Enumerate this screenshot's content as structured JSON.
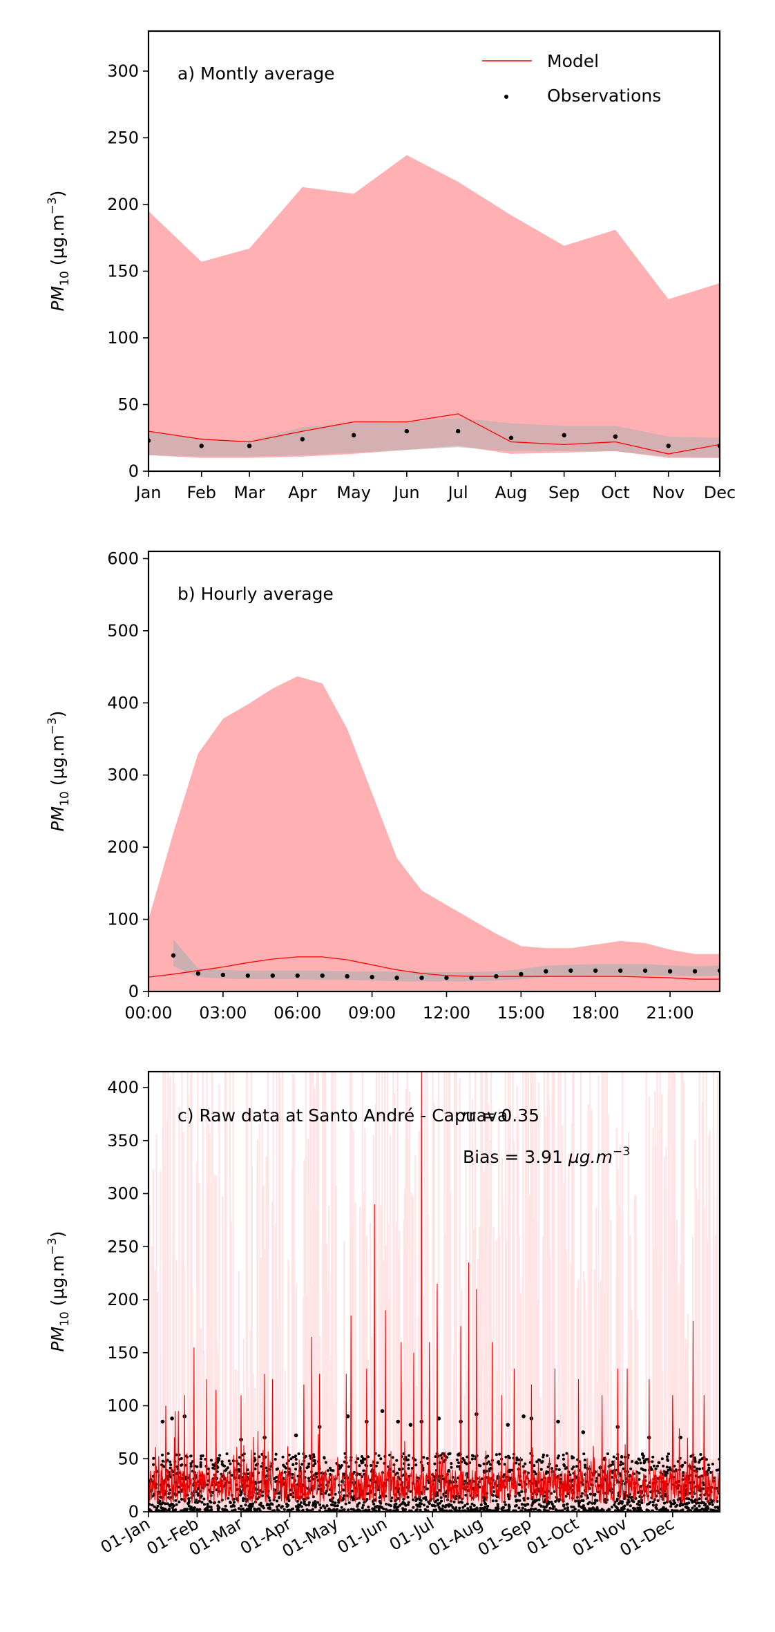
{
  "chart_data": [
    {
      "type": "area",
      "title": "a) Montly average",
      "xlabel": "",
      "ylabel": "PM10 (µg.m-3)",
      "ylabel_base": "PM",
      "ylabel_sub": "10",
      "ylabel_units": " (µg.m",
      "ylabel_exp": "−3",
      "ylabel_close": ")",
      "ylim": [
        0,
        330
      ],
      "y_ticks": [
        0,
        50,
        100,
        150,
        200,
        250,
        300
      ],
      "categories": [
        "Jan",
        "Feb",
        "Mar",
        "Apr",
        "May",
        "Jun",
        "Jul",
        "Aug",
        "Sep",
        "Oct",
        "Nov",
        "Dec"
      ],
      "x_positions": [
        1,
        32,
        60,
        91,
        121,
        152,
        182,
        213,
        244,
        274,
        305,
        335
      ],
      "x_range": [
        1,
        335
      ],
      "legend": [
        "Model",
        "Observations"
      ],
      "legend_position": "top-right",
      "series": [
        {
          "name": "Model",
          "values": [
            30,
            24,
            22,
            30,
            37,
            37,
            43,
            22,
            20,
            22,
            13,
            20
          ]
        },
        {
          "name": "Observations",
          "values": [
            23,
            19,
            19,
            24,
            27,
            30,
            30,
            25,
            27,
            26,
            19,
            19
          ]
        }
      ],
      "model_band": {
        "lower": [
          12,
          10,
          10,
          11,
          13,
          16,
          19,
          13,
          14,
          15,
          10,
          10
        ],
        "upper": [
          195,
          157,
          167,
          213,
          208,
          237,
          217,
          192,
          169,
          181,
          129,
          141
        ]
      },
      "obs_band": {
        "lower": [
          12,
          11,
          11,
          12,
          14,
          16,
          18,
          15,
          15,
          15,
          11,
          10
        ],
        "upper": [
          30,
          24,
          23,
          33,
          36,
          37,
          40,
          36,
          34,
          34,
          26,
          25
        ]
      }
    },
    {
      "type": "area",
      "title": "b) Hourly average",
      "xlabel": "",
      "ylabel": "PM10 (µg.m-3)",
      "ylabel_base": "PM",
      "ylabel_sub": "10",
      "ylabel_units": " (µg.m",
      "ylabel_exp": "−3",
      "ylabel_close": ")",
      "ylim": [
        0,
        610
      ],
      "y_ticks": [
        0,
        100,
        200,
        300,
        400,
        500,
        600
      ],
      "xlim": [
        0,
        23
      ],
      "x_ticks": [
        0,
        3,
        6,
        9,
        12,
        15,
        18,
        21
      ],
      "x_tick_labels": [
        "00:00",
        "03:00",
        "06:00",
        "09:00",
        "12:00",
        "15:00",
        "18:00",
        "21:00"
      ],
      "x": [
        0,
        1,
        2,
        3,
        4,
        5,
        6,
        7,
        8,
        9,
        10,
        11,
        12,
        13,
        14,
        15,
        16,
        17,
        18,
        19,
        20,
        21,
        22,
        23
      ],
      "series": [
        {
          "name": "Model",
          "values": [
            20,
            24,
            29,
            34,
            40,
            45,
            48,
            48,
            44,
            37,
            30,
            25,
            22,
            21,
            21,
            21,
            21,
            21,
            21,
            21,
            20,
            19,
            17,
            17
          ]
        },
        {
          "name": "Observations",
          "values": [
            null,
            50,
            25,
            23,
            22,
            22,
            22,
            22,
            21,
            20,
            19,
            19,
            19,
            19,
            21,
            24,
            28,
            29,
            29,
            29,
            29,
            28,
            28,
            29
          ]
        }
      ],
      "model_band": {
        "lower": [
          0,
          0,
          0,
          0,
          0,
          0,
          0,
          0,
          0,
          0,
          0,
          0,
          0,
          0,
          0,
          0,
          0,
          0,
          0,
          0,
          0,
          0,
          0,
          0
        ],
        "upper": [
          100,
          220,
          330,
          378,
          398,
          420,
          437,
          427,
          364,
          275,
          185,
          140,
          120,
          100,
          80,
          63,
          60,
          60,
          65,
          70,
          67,
          58,
          52,
          52
        ]
      },
      "obs_band": {
        "lower": [
          null,
          35,
          20,
          18,
          17,
          17,
          17,
          16,
          16,
          15,
          14,
          14,
          14,
          14,
          15,
          17,
          20,
          21,
          22,
          22,
          22,
          22,
          21,
          22
        ],
        "upper": [
          null,
          72,
          32,
          30,
          29,
          29,
          29,
          29,
          28,
          28,
          27,
          27,
          27,
          27,
          28,
          31,
          36,
          37,
          38,
          38,
          38,
          36,
          35,
          36
        ]
      }
    },
    {
      "type": "line",
      "title": "c) Raw data at Santo André - Capuava",
      "annotations": [
        "r = 0.35",
        "Bias = 3.91 µg.m-3"
      ],
      "ann_r_text": "r = 0.35",
      "ann_bias_text": "Bias = 3.91 ",
      "ann_bias_unit": "µg.m",
      "ann_bias_exp": "−3",
      "xlabel": "",
      "ylabel": "PM10 (µg.m-3)",
      "ylabel_base": "PM",
      "ylabel_sub": "10",
      "ylabel_units": " (µg.m",
      "ylabel_exp": "−3",
      "ylabel_close": ")",
      "ylim": [
        0,
        415
      ],
      "y_ticks": [
        0,
        50,
        100,
        150,
        200,
        250,
        300,
        350,
        400
      ],
      "xlim": [
        1,
        365
      ],
      "x_ticks": [
        1,
        32,
        60,
        91,
        121,
        152,
        182,
        213,
        244,
        274,
        305,
        335
      ],
      "x_tick_labels": [
        "01-Jan",
        "01-Feb",
        "01-Mar",
        "01-Apr",
        "01-May",
        "01-Jun",
        "01-Jul",
        "01-Aug",
        "01-Sep",
        "01-Oct",
        "01-Nov",
        "01-Dec"
      ],
      "series": [
        {
          "name": "Model",
          "note": "hourly model concentrations (red line, light red band)"
        },
        {
          "name": "Observations",
          "note": "hourly observed concentrations (black dots)"
        }
      ],
      "model_peaks": [
        {
          "day": 12,
          "value": 100
        },
        {
          "day": 18,
          "value": 95
        },
        {
          "day": 20,
          "value": 95
        },
        {
          "day": 24,
          "value": 110
        },
        {
          "day": 30,
          "value": 155
        },
        {
          "day": 38,
          "value": 125
        },
        {
          "day": 44,
          "value": 115
        },
        {
          "day": 60,
          "value": 110
        },
        {
          "day": 75,
          "value": 130
        },
        {
          "day": 80,
          "value": 125
        },
        {
          "day": 100,
          "value": 120
        },
        {
          "day": 105,
          "value": 165
        },
        {
          "day": 110,
          "value": 130
        },
        {
          "day": 127,
          "value": 130
        },
        {
          "day": 130,
          "value": 185
        },
        {
          "day": 140,
          "value": 135
        },
        {
          "day": 145,
          "value": 290
        },
        {
          "day": 152,
          "value": 190
        },
        {
          "day": 162,
          "value": 160
        },
        {
          "day": 170,
          "value": 150
        },
        {
          "day": 175,
          "value": 415
        },
        {
          "day": 180,
          "value": 160
        },
        {
          "day": 185,
          "value": 215
        },
        {
          "day": 200,
          "value": 175
        },
        {
          "day": 205,
          "value": 235
        },
        {
          "day": 210,
          "value": 210
        },
        {
          "day": 220,
          "value": 160
        },
        {
          "day": 226,
          "value": 110
        },
        {
          "day": 234,
          "value": 135
        },
        {
          "day": 245,
          "value": 120
        },
        {
          "day": 260,
          "value": 135
        },
        {
          "day": 275,
          "value": 125
        },
        {
          "day": 290,
          "value": 110
        },
        {
          "day": 300,
          "value": 135
        },
        {
          "day": 306,
          "value": 135
        },
        {
          "day": 320,
          "value": 125
        },
        {
          "day": 335,
          "value": 110
        },
        {
          "day": 348,
          "value": 180
        },
        {
          "day": 355,
          "value": 110
        }
      ],
      "obs_peaks": [
        {
          "day": 10,
          "value": 85
        },
        {
          "day": 16,
          "value": 88
        },
        {
          "day": 24,
          "value": 90
        },
        {
          "day": 60,
          "value": 68
        },
        {
          "day": 75,
          "value": 70
        },
        {
          "day": 95,
          "value": 72
        },
        {
          "day": 110,
          "value": 80
        },
        {
          "day": 128,
          "value": 90
        },
        {
          "day": 140,
          "value": 85
        },
        {
          "day": 150,
          "value": 95
        },
        {
          "day": 160,
          "value": 85
        },
        {
          "day": 168,
          "value": 82
        },
        {
          "day": 175,
          "value": 85
        },
        {
          "day": 186,
          "value": 88
        },
        {
          "day": 200,
          "value": 85
        },
        {
          "day": 210,
          "value": 92
        },
        {
          "day": 230,
          "value": 82
        },
        {
          "day": 240,
          "value": 90
        },
        {
          "day": 245,
          "value": 88
        },
        {
          "day": 262,
          "value": 85
        },
        {
          "day": 278,
          "value": 75
        },
        {
          "day": 300,
          "value": 80
        },
        {
          "day": 320,
          "value": 70
        },
        {
          "day": 340,
          "value": 70
        }
      ]
    }
  ]
}
